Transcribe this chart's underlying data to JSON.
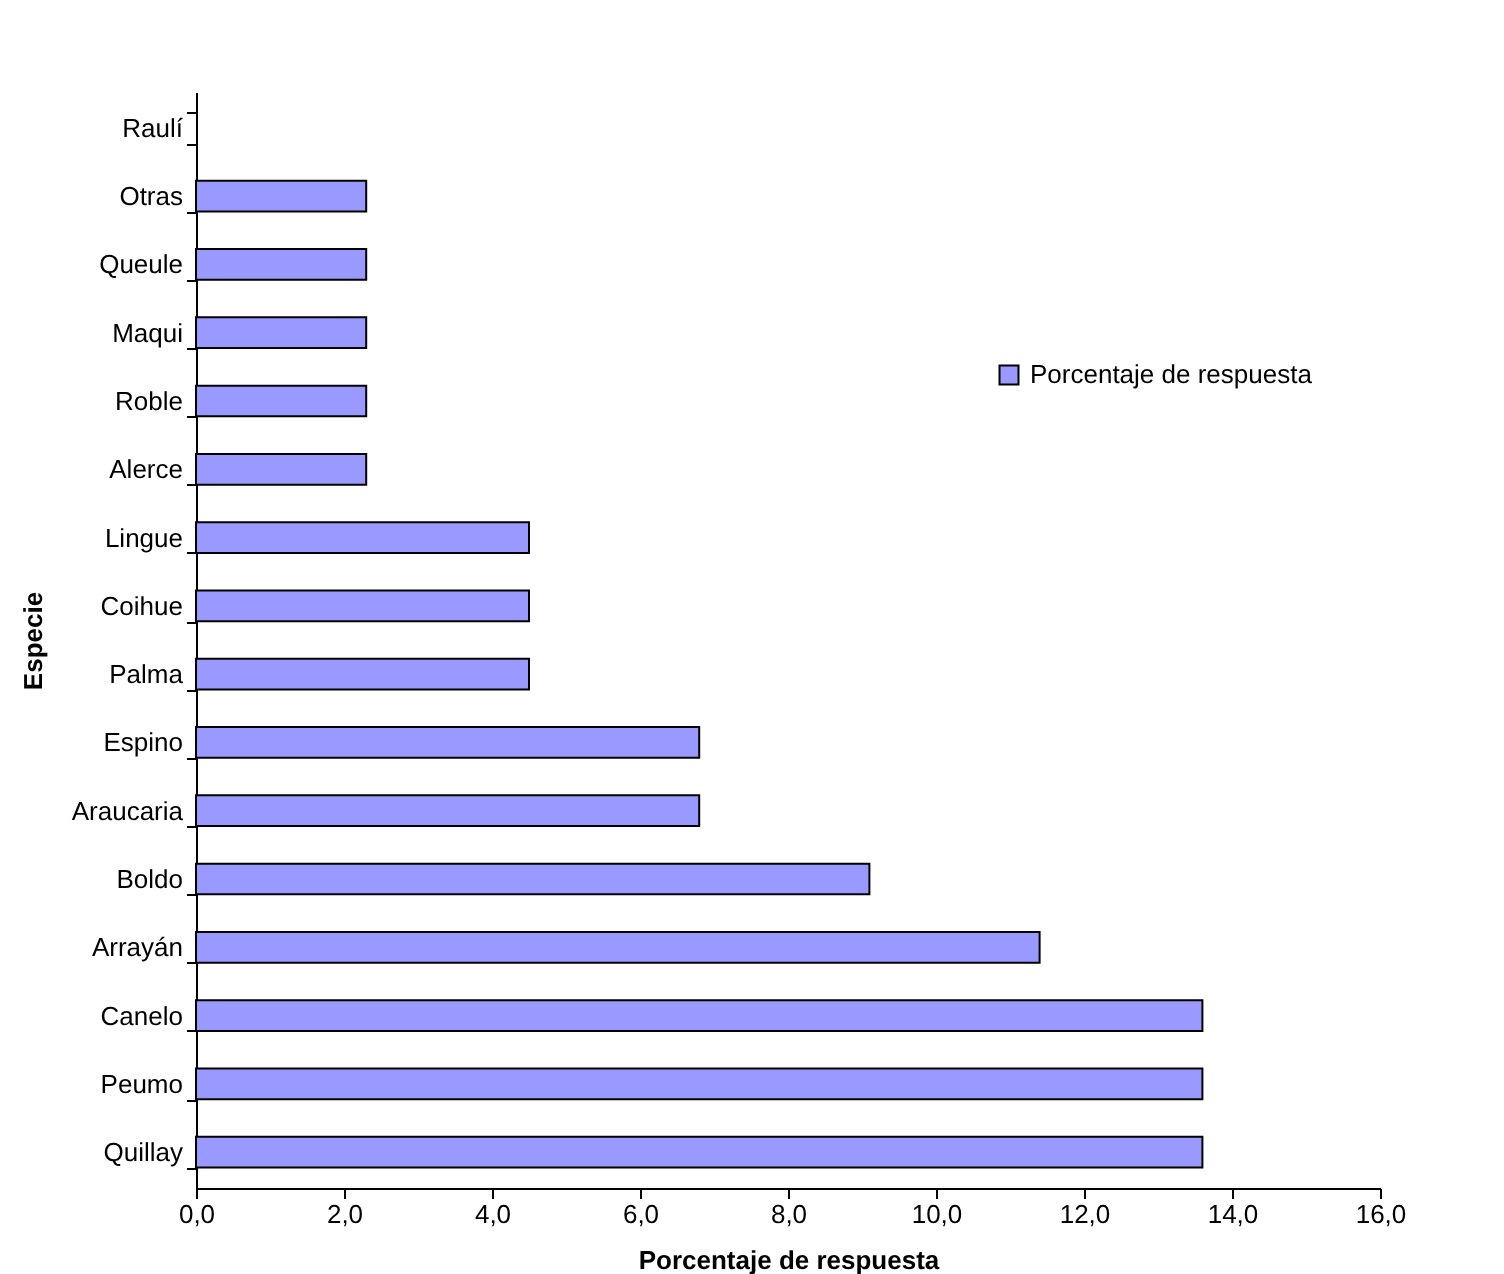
{
  "chart_data": {
    "type": "bar",
    "orientation": "horizontal",
    "xlabel": "Porcentaje de respuesta",
    "ylabel": "Especie",
    "categories": [
      "Raulí",
      "Otras",
      "Queule",
      "Maqui",
      "Roble",
      "Alerce",
      "Lingue",
      "Coihue",
      "Palma",
      "Espino",
      "Araucaria",
      "Boldo",
      "Arrayán",
      "Canelo",
      "Peumo",
      "Quillay"
    ],
    "series": [
      {
        "name": "Porcentaje de respuesta",
        "color": "#9999ff",
        "values": [
          0,
          2.3,
          2.3,
          2.3,
          2.3,
          2.3,
          4.5,
          4.5,
          4.5,
          6.8,
          6.8,
          9.1,
          11.4,
          13.6,
          13.6,
          13.6
        ]
      }
    ],
    "xlim": [
      0,
      16
    ],
    "xticks": [
      {
        "value": 0,
        "label": "0,0"
      },
      {
        "value": 2,
        "label": "2,0"
      },
      {
        "value": 4,
        "label": "4,0"
      },
      {
        "value": 6,
        "label": "6,0"
      },
      {
        "value": 8,
        "label": "8,0"
      },
      {
        "value": 10,
        "label": "10,0"
      },
      {
        "value": 12,
        "label": "12,0"
      },
      {
        "value": 14,
        "label": "14,0"
      },
      {
        "value": 16,
        "label": "16,0"
      }
    ],
    "legend": "right"
  }
}
